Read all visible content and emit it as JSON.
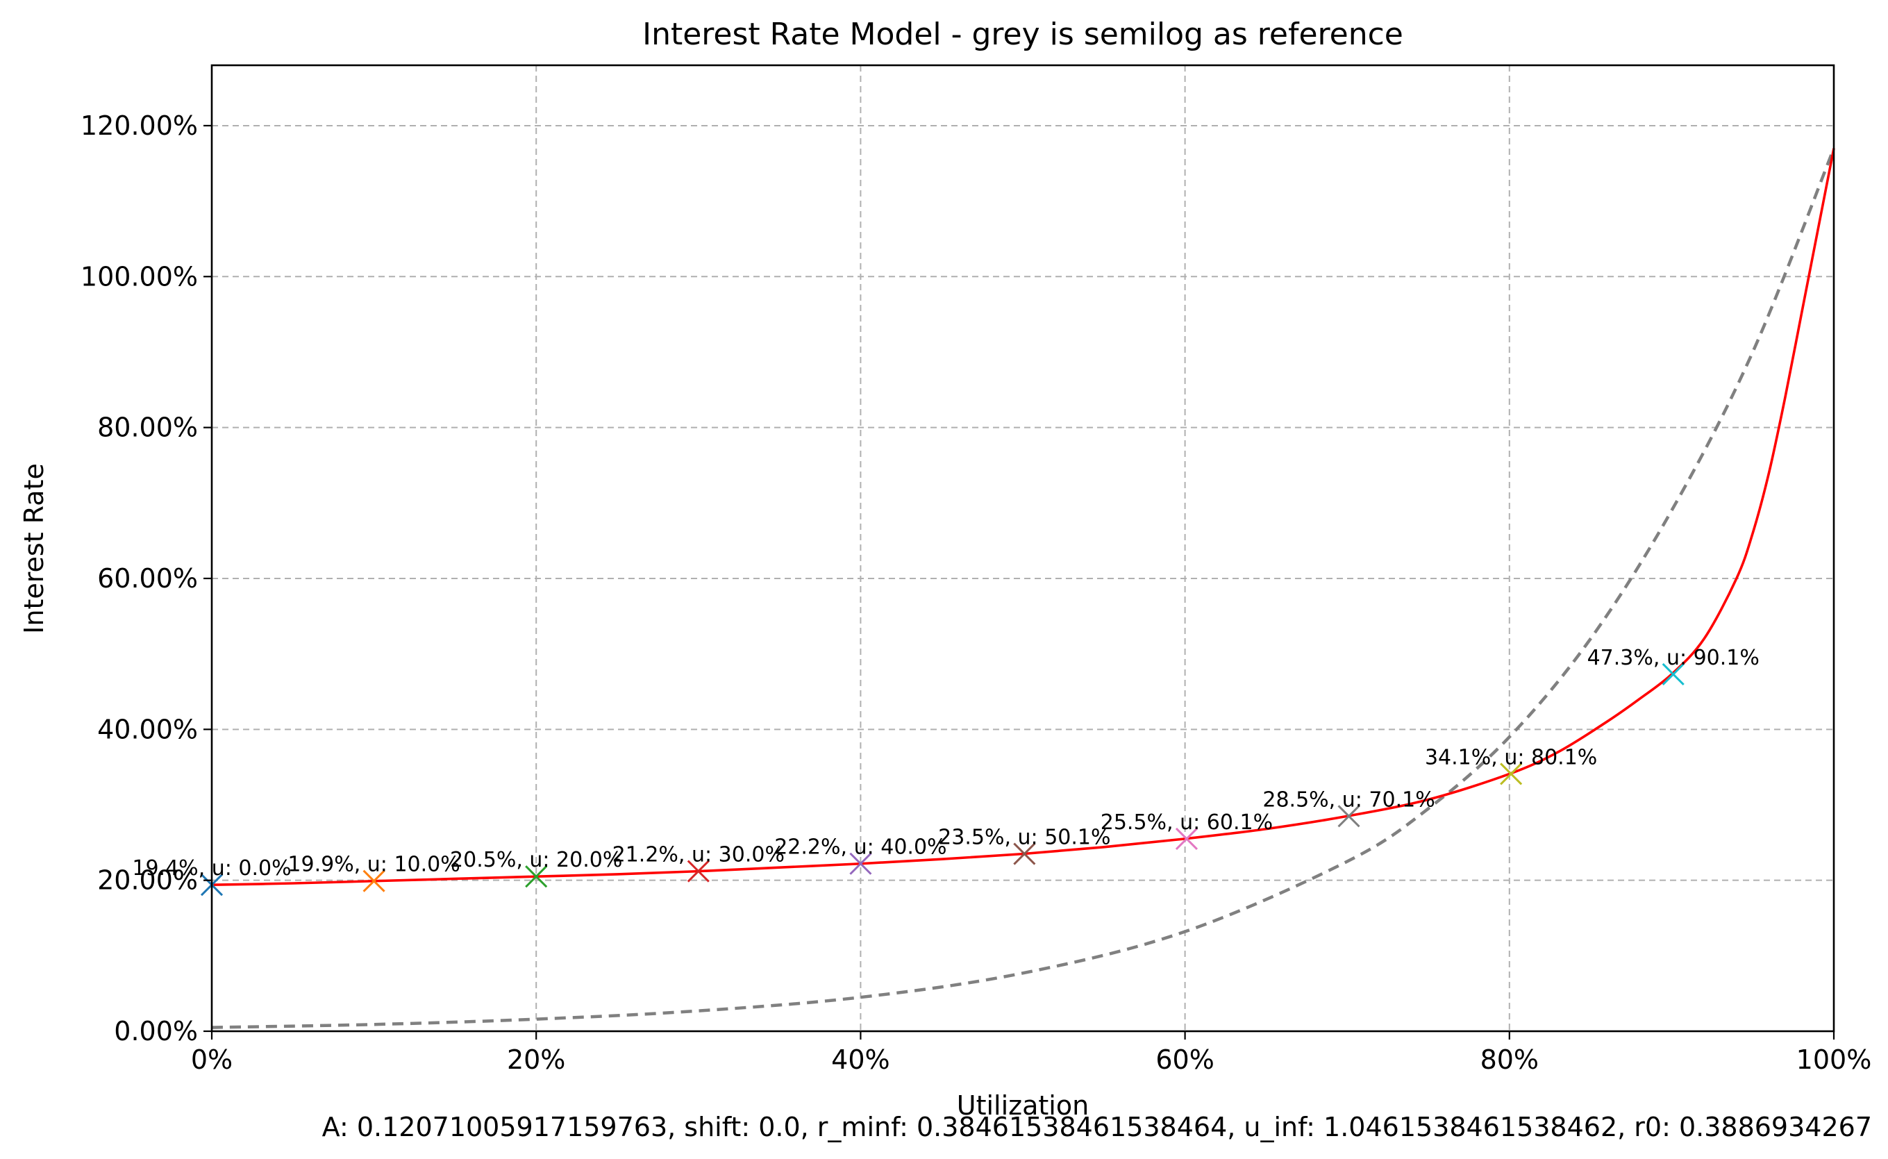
{
  "chart_data": {
    "type": "line",
    "title": "Interest Rate Model - grey is semilog as reference",
    "xlabel": "Utilization",
    "ylabel": "Interest Rate",
    "xlim": [
      0,
      1
    ],
    "ylim": [
      0,
      1.28
    ],
    "x_ticks": [
      0,
      0.2,
      0.4,
      0.6,
      0.8,
      1.0
    ],
    "x_tick_labels": [
      "0%",
      "20%",
      "40%",
      "60%",
      "80%",
      "100%"
    ],
    "y_ticks": [
      0,
      0.2,
      0.4,
      0.6,
      0.8,
      1.0,
      1.2
    ],
    "y_tick_labels": [
      "0.00%",
      "20.00%",
      "40.00%",
      "60.00%",
      "80.00%",
      "100.00%",
      "120.00%"
    ],
    "grid": true,
    "grid_style": "dashed",
    "series": [
      {
        "style": "solid",
        "color": "#ff0000",
        "x": [
          0,
          0.05,
          0.1,
          0.15,
          0.2,
          0.25,
          0.3,
          0.35,
          0.4,
          0.45,
          0.5,
          0.55,
          0.6,
          0.65,
          0.7,
          0.75,
          0.8,
          0.83,
          0.86,
          0.88,
          0.9,
          0.92,
          0.94,
          0.95,
          0.96,
          0.97,
          0.98,
          0.99,
          1.0
        ],
        "y": [
          0.194,
          0.196,
          0.199,
          0.202,
          0.205,
          0.208,
          0.212,
          0.217,
          0.222,
          0.228,
          0.235,
          0.244,
          0.255,
          0.268,
          0.285,
          0.307,
          0.341,
          0.37,
          0.41,
          0.44,
          0.473,
          0.52,
          0.6,
          0.66,
          0.74,
          0.84,
          0.95,
          1.06,
          1.17
        ]
      },
      {
        "style": "dashed",
        "color": "#808080",
        "x": [
          0,
          0.1,
          0.2,
          0.3,
          0.4,
          0.5,
          0.6,
          0.7,
          0.75,
          0.8,
          0.85,
          0.9,
          0.95,
          1.0
        ],
        "y": [
          0.005,
          0.009,
          0.016,
          0.027,
          0.045,
          0.077,
          0.132,
          0.225,
          0.295,
          0.39,
          0.52,
          0.69,
          0.9,
          1.17
        ]
      }
    ],
    "markers": [
      {
        "x": 0.0,
        "y": 0.194,
        "color": "#1f77b4",
        "label": "19.4%, u: 0.0%"
      },
      {
        "x": 0.1,
        "y": 0.199,
        "color": "#ff7f0e",
        "label": "19.9%, u: 10.0%"
      },
      {
        "x": 0.2,
        "y": 0.205,
        "color": "#2ca02c",
        "label": "20.5%, u: 20.0%"
      },
      {
        "x": 0.3,
        "y": 0.212,
        "color": "#d62728",
        "label": "21.2%, u: 30.0%"
      },
      {
        "x": 0.4,
        "y": 0.222,
        "color": "#9467bd",
        "label": "22.2%, u: 40.0%"
      },
      {
        "x": 0.501,
        "y": 0.235,
        "color": "#8c564b",
        "label": "23.5%, u: 50.1%"
      },
      {
        "x": 0.601,
        "y": 0.255,
        "color": "#e377c2",
        "label": "25.5%, u: 60.1%"
      },
      {
        "x": 0.701,
        "y": 0.285,
        "color": "#7f7f7f",
        "label": "28.5%, u: 70.1%"
      },
      {
        "x": 0.801,
        "y": 0.341,
        "color": "#bcbd22",
        "label": "34.1%, u: 80.1%"
      },
      {
        "x": 0.901,
        "y": 0.473,
        "color": "#17becf",
        "label": "47.3%, u: 90.1%"
      }
    ],
    "footer": "A: 0.12071005917159763, shift: 0.0, r_minf: 0.38461538461538464, u_inf: 1.0461538461538462, r0: 0.3886934267"
  }
}
